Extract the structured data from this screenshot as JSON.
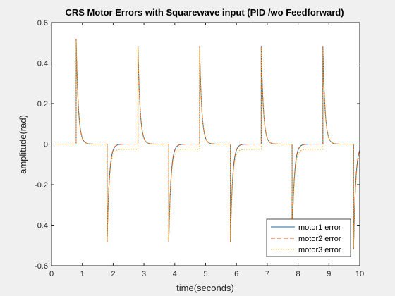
{
  "chart_data": {
    "type": "line",
    "title": "CRS Motor Errors with Squarewave input (PID /wo Feedforward)",
    "xlabel": "time(seconds)",
    "ylabel": "amplitude(rad)",
    "xlim": [
      0,
      10
    ],
    "ylim": [
      -0.6,
      0.6
    ],
    "xticks": [
      0,
      1,
      2,
      3,
      4,
      5,
      6,
      7,
      8,
      9,
      10
    ],
    "yticks": [
      -0.6,
      -0.4,
      -0.2,
      0,
      0.2,
      0.4,
      0.6
    ],
    "xtick_labels": [
      "0",
      "1",
      "2",
      "3",
      "4",
      "5",
      "6",
      "7",
      "8",
      "9",
      "10"
    ],
    "ytick_labels": [
      "-0.6",
      "-0.4",
      "-0.2",
      "0",
      "0.2",
      "0.4",
      "0.6"
    ],
    "grid": false,
    "legend_position": "bottom-right",
    "square_wave": {
      "period_s": 2.0,
      "first_rising_edge_s": 0.8,
      "first_falling_edge_s": 1.8
    },
    "series": [
      {
        "name": "motor1 error",
        "color": "#0072BD",
        "dash": "solid",
        "peak": 0.52,
        "trough": -0.52,
        "settle_high": 0.0,
        "settle_low": 0.0
      },
      {
        "name": "motor2 error",
        "color": "#D95319",
        "dash": "dashed",
        "peak": 0.52,
        "trough": -0.52,
        "settle_high": 0.0,
        "settle_low": 0.0
      },
      {
        "name": "motor3 error",
        "color": "#EDB120",
        "dash": "dotted",
        "peak": 0.51,
        "trough": -0.51,
        "settle_high": 0.0,
        "settle_low": -0.025
      }
    ]
  }
}
